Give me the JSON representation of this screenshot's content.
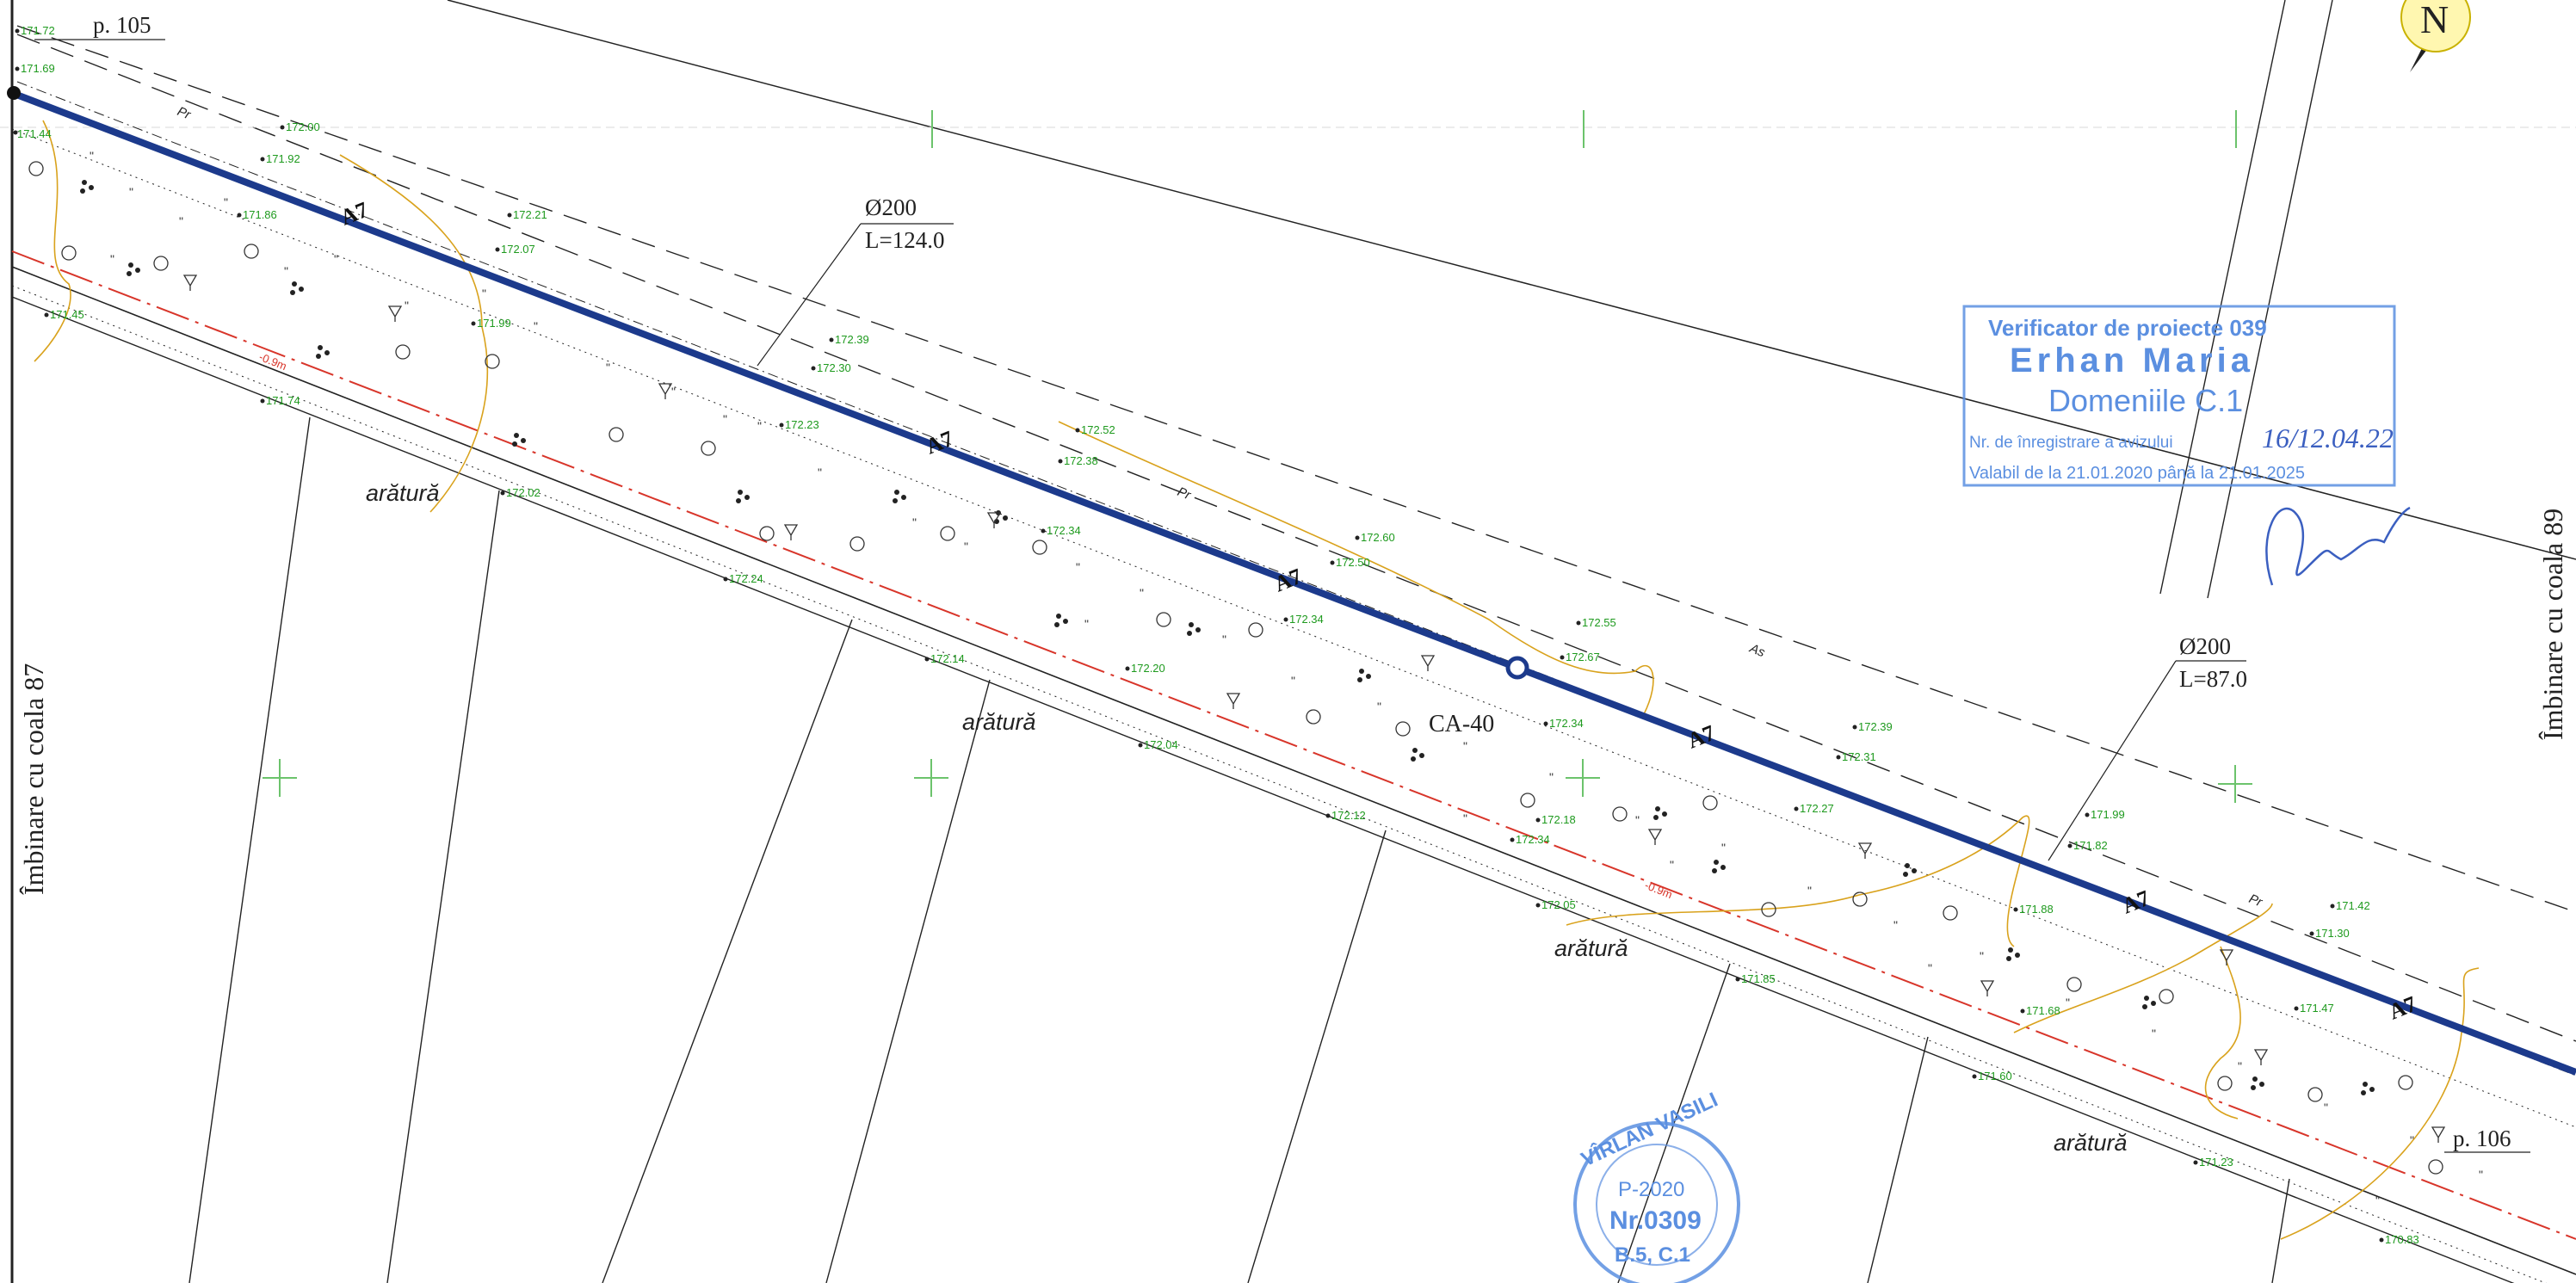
{
  "colors": {
    "pipe": "#1c3a8c",
    "elevation": "#1e9a1e",
    "boundary": "#d8352a",
    "contour": "#d9a21c",
    "stamp": "#5b8fe0",
    "ink": "#222222"
  },
  "sheet": {
    "page_start": "p. 105",
    "page_end": "p. 106",
    "join_left": "Îmbinare cu coala 87",
    "join_right": "Îmbinare cu coala 89",
    "north": "N"
  },
  "pipe": {
    "label": "A7",
    "segment_1": {
      "diameter": "Ø200",
      "length": "L=124.0"
    },
    "segment_2": {
      "diameter": "Ø200",
      "length": "L=87.0"
    },
    "chamber": "CA-40"
  },
  "field_labels": [
    "arătură",
    "arătură",
    "arătură",
    "arătură"
  ],
  "small_labels": {
    "pr1": "Pr",
    "pr2": "Pr",
    "pr3": "Pr",
    "as": "As",
    "depth1": "-0.9m",
    "depth2": "-0.9m"
  },
  "elevations": [
    "171.72",
    "171.69",
    "171.44",
    "172.00",
    "171.92",
    "171.86",
    "172.21",
    "172.07",
    "171.99",
    "171.45",
    "171.74",
    "172.02",
    "172.39",
    "172.30",
    "172.23",
    "172.52",
    "172.38",
    "172.34",
    "172.24",
    "172.14",
    "172.60",
    "172.50",
    "172.34",
    "172.20",
    "172.04",
    "172.55",
    "172.67",
    "172.34",
    "172.12",
    "172.39",
    "172.31",
    "172.27",
    "172.18",
    "172.34",
    "172.05",
    "171.85",
    "171.99",
    "171.82",
    "171.88",
    "171.60",
    "171.68",
    "171.42",
    "171.30",
    "171.47",
    "171.23",
    "170.83"
  ],
  "stamp_verif": {
    "line1": "Verificator de proiecte 039",
    "line2": "Erhan Maria",
    "line3": "Domeniile C.1",
    "line4": "Nr. de înregistrare a avizului",
    "line4_hand": "16/12.04.22",
    "line5": "Valabil de la 21.01.2020 până la 21.01.2025"
  },
  "stamp_round": {
    "name": "VÎRLAN VASILI",
    "code": "P-2020",
    "number": "Nr.0309",
    "domain": "B.5, C.1"
  }
}
